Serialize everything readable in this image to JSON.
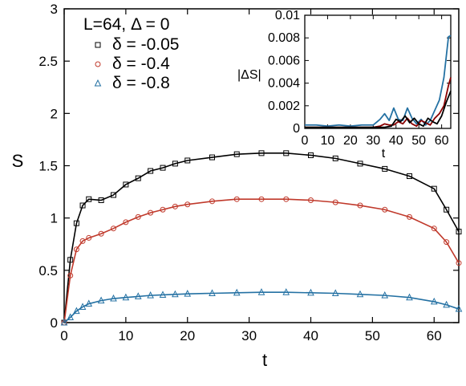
{
  "chart_data": [
    {
      "type": "scatter",
      "panel": "main",
      "xlabel": "t",
      "ylabel": "S",
      "xlim": [
        0,
        64
      ],
      "ylim": [
        0,
        3
      ],
      "xticks": [
        0,
        10,
        20,
        30,
        40,
        50,
        60
      ],
      "yticks": [
        0,
        0.5,
        1,
        1.5,
        2,
        2.5,
        3
      ],
      "ytick_labels": [
        "0",
        "0.5",
        "1",
        "1.5",
        "2",
        "2.5",
        "3"
      ],
      "legend_title": "L=64, Δ = 0",
      "legend_position": "top-left",
      "grid": false,
      "series": [
        {
          "name": "δ = -0.05",
          "marker": "square",
          "color": "#000000",
          "x": [
            0,
            1,
            2,
            3,
            4,
            6,
            8,
            10,
            12,
            14,
            16,
            18,
            20,
            24,
            28,
            32,
            36,
            40,
            44,
            48,
            52,
            56,
            60,
            62,
            64
          ],
          "y": [
            0,
            0.6,
            0.95,
            1.12,
            1.18,
            1.17,
            1.22,
            1.32,
            1.38,
            1.45,
            1.48,
            1.52,
            1.55,
            1.58,
            1.61,
            1.62,
            1.62,
            1.6,
            1.57,
            1.52,
            1.47,
            1.4,
            1.28,
            1.08,
            0.87
          ]
        },
        {
          "name": "δ = -0.4",
          "marker": "circle",
          "color": "#c0392b",
          "x": [
            0,
            1,
            2,
            3,
            4,
            6,
            8,
            10,
            12,
            14,
            16,
            18,
            20,
            24,
            28,
            32,
            36,
            40,
            44,
            48,
            52,
            56,
            60,
            62,
            64
          ],
          "y": [
            0,
            0.45,
            0.7,
            0.78,
            0.81,
            0.85,
            0.9,
            0.96,
            1.01,
            1.05,
            1.08,
            1.11,
            1.13,
            1.16,
            1.18,
            1.18,
            1.18,
            1.17,
            1.15,
            1.12,
            1.08,
            1.01,
            0.9,
            0.77,
            0.57
          ]
        },
        {
          "name": "δ = -0.8",
          "marker": "triangle",
          "color": "#2471a3",
          "x": [
            0,
            1,
            2,
            3,
            4,
            6,
            8,
            10,
            12,
            14,
            16,
            18,
            20,
            24,
            28,
            32,
            36,
            40,
            44,
            48,
            52,
            56,
            60,
            62,
            64
          ],
          "y": [
            0,
            0.05,
            0.11,
            0.15,
            0.18,
            0.21,
            0.23,
            0.24,
            0.25,
            0.26,
            0.265,
            0.27,
            0.275,
            0.28,
            0.285,
            0.29,
            0.29,
            0.285,
            0.28,
            0.27,
            0.26,
            0.24,
            0.2,
            0.17,
            0.13
          ]
        }
      ]
    },
    {
      "type": "line",
      "panel": "inset",
      "xlabel": "t",
      "ylabel": "|ΔS|",
      "xlim": [
        0,
        64
      ],
      "ylim": [
        0,
        0.01
      ],
      "xticks": [
        0,
        10,
        20,
        30,
        40,
        50,
        60
      ],
      "yticks": [
        0,
        0.002,
        0.004,
        0.006,
        0.008,
        0.01
      ],
      "ytick_labels": [
        "0",
        "0.002",
        "0.004",
        "0.006",
        "0.008",
        "0.01"
      ],
      "grid": false,
      "series": [
        {
          "color": "#2471a3",
          "x": [
            0,
            5,
            10,
            15,
            20,
            25,
            30,
            33,
            35,
            37,
            39,
            41,
            43,
            45,
            47,
            49,
            51,
            53,
            55,
            57,
            59,
            61,
            63,
            64
          ],
          "y": [
            0.0003,
            0.0003,
            0.0002,
            0.0003,
            0.0002,
            0.0003,
            0.0003,
            0.0008,
            0.0013,
            0.0007,
            0.0018,
            0.0008,
            0.0007,
            0.0018,
            0.0009,
            0.0004,
            0.0008,
            0.0003,
            0.0007,
            0.0016,
            0.0025,
            0.0045,
            0.0081,
            0.0082
          ]
        },
        {
          "color": "#8b0000",
          "x": [
            0,
            10,
            20,
            30,
            33,
            35,
            37,
            39,
            41,
            43,
            45,
            47,
            49,
            51,
            53,
            55,
            57,
            59,
            61,
            63,
            64
          ],
          "y": [
            0.0001,
            0.0001,
            0.0001,
            0.0001,
            0.0002,
            0.0004,
            0.0003,
            0.0003,
            0.0006,
            0.0004,
            0.0009,
            0.0004,
            0.0002,
            0.0007,
            0.0005,
            0.0003,
            0.0009,
            0.0013,
            0.002,
            0.0038,
            0.0045
          ]
        },
        {
          "color": "#000000",
          "x": [
            0,
            10,
            20,
            30,
            35,
            38,
            40,
            42,
            44,
            46,
            48,
            50,
            52,
            54,
            56,
            58,
            60,
            62,
            64
          ],
          "y": [
            0.0001,
            0.0001,
            0.0001,
            0.0001,
            0.0001,
            0.0002,
            0.0008,
            0.0006,
            0.0011,
            0.0005,
            0.0009,
            0.0004,
            0.0002,
            0.0009,
            0.0006,
            0.0004,
            0.0011,
            0.0023,
            0.0033
          ]
        }
      ]
    }
  ]
}
